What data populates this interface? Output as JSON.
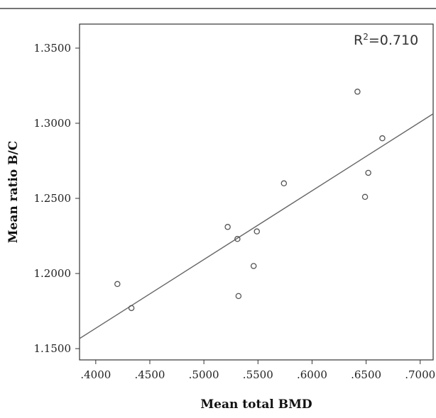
{
  "chart_data": {
    "type": "scatter",
    "xlabel": "Mean total BMD",
    "ylabel": "Mean ratio B/C",
    "xlim": [
      0.385,
      0.712
    ],
    "ylim": [
      1.1425,
      1.366
    ],
    "x_ticks": [
      0.4,
      0.45,
      0.5,
      0.55,
      0.6,
      0.65,
      0.7
    ],
    "x_tick_labels": [
      ".4000",
      ".4500",
      ".5000",
      ".5500",
      ".6000",
      ".6500",
      ".7000"
    ],
    "y_ticks": [
      1.15,
      1.2,
      1.25,
      1.3,
      1.35
    ],
    "y_tick_labels": [
      "1.1500",
      "1.2000",
      "1.2500",
      "1.3000",
      "1.3500"
    ],
    "points": [
      {
        "x": 0.42,
        "y": 1.193
      },
      {
        "x": 0.433,
        "y": 1.177
      },
      {
        "x": 0.522,
        "y": 1.231
      },
      {
        "x": 0.531,
        "y": 1.223
      },
      {
        "x": 0.532,
        "y": 1.185
      },
      {
        "x": 0.546,
        "y": 1.205
      },
      {
        "x": 0.549,
        "y": 1.228
      },
      {
        "x": 0.574,
        "y": 1.26
      },
      {
        "x": 0.642,
        "y": 1.321
      },
      {
        "x": 0.649,
        "y": 1.251
      },
      {
        "x": 0.652,
        "y": 1.267
      },
      {
        "x": 0.665,
        "y": 1.29
      }
    ],
    "fit_line": {
      "x": [
        0.385,
        0.712
      ],
      "y": [
        1.1567,
        1.3063
      ]
    },
    "annotation": {
      "r2_prefix": "R",
      "r2_sup": "2",
      "r2_value": "=0.710"
    },
    "grid": false,
    "colors": {
      "point_stroke": "#555555",
      "fit_line": "#666666",
      "plot_bg": "#ffffff",
      "axis": "#333333"
    }
  }
}
